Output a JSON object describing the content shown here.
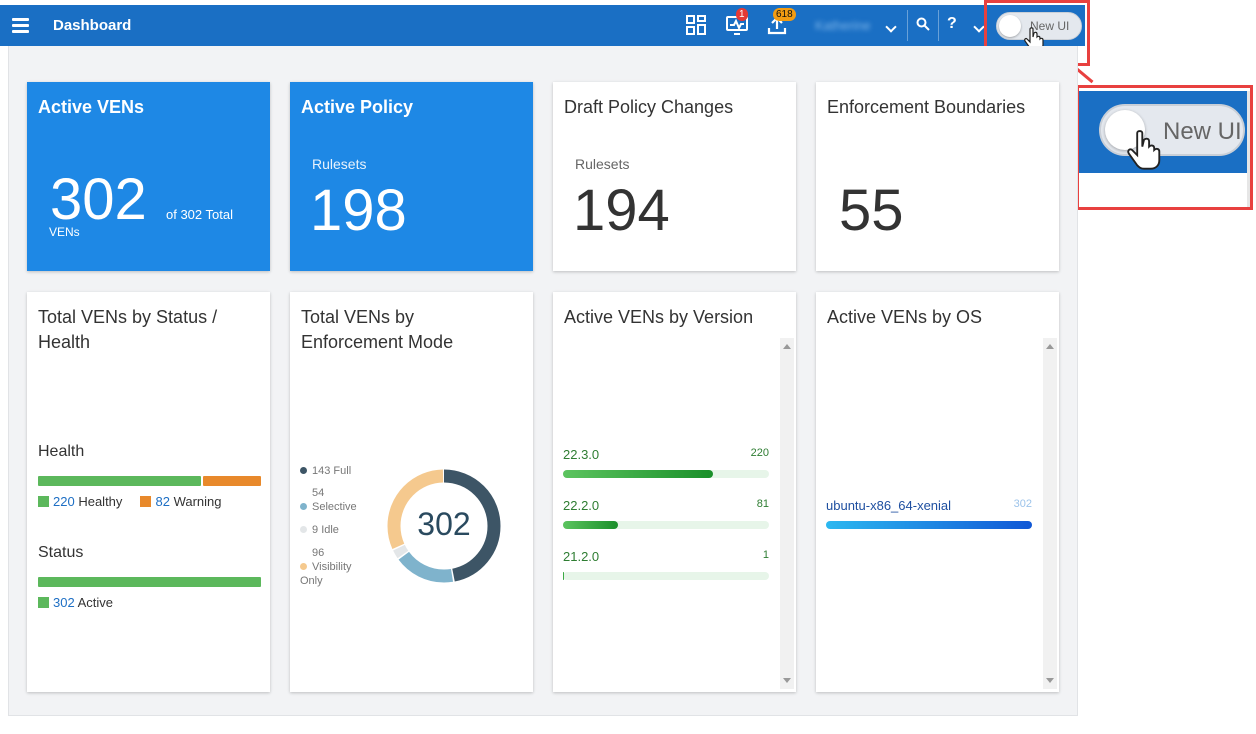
{
  "header": {
    "title": "Dashboard",
    "alerts_badge": "1",
    "uploads_badge": "618",
    "username": "Katherine",
    "help_label": "?",
    "toggle_label": "New UI",
    "brand_color": "#1a6fc4"
  },
  "zoom_callout": {
    "toggle_label": "New UI"
  },
  "cards": {
    "active_vens": {
      "title": "Active VENs",
      "value": "302",
      "suffix": "of 302 Total",
      "unit": "VENs"
    },
    "active_policy": {
      "title": "Active Policy",
      "label": "Rulesets",
      "value": "198"
    },
    "draft_policy": {
      "title": "Draft Policy Changes",
      "label": "Rulesets",
      "value": "194"
    },
    "enforcement_boundaries": {
      "title": "Enforcement Boundaries",
      "value": "55"
    }
  },
  "status_health": {
    "title_line1": "Total VENs by Status /",
    "title_line2": "Health",
    "health_heading": "Health",
    "healthy_count": "220",
    "healthy_label": "Healthy",
    "warning_count": "82",
    "warning_label": "Warning",
    "healthy_fraction": 0.73,
    "status_heading": "Status",
    "active_count": "302",
    "active_label": "Active"
  },
  "enforcement_mode": {
    "title_line1": "Total VENs by",
    "title_line2": "Enforcement Mode",
    "total": "302",
    "legend": [
      {
        "count": "143",
        "label": "Full",
        "color": "#3d5566",
        "value": 143
      },
      {
        "count": "54",
        "label": "Selective",
        "color": "#7fb3cc",
        "value": 54
      },
      {
        "count": "9",
        "label": "Idle",
        "color": "#e3e6e8",
        "value": 9
      },
      {
        "count": "96",
        "label": "Visibility Only",
        "color": "#f5c98e",
        "value": 96
      }
    ]
  },
  "by_version": {
    "title": "Active VENs by Version",
    "rows": [
      {
        "version": "22.3.0",
        "count": "220",
        "value": 220
      },
      {
        "version": "22.2.0",
        "count": "81",
        "value": 81
      },
      {
        "version": "21.2.0",
        "count": "1",
        "value": 1
      }
    ],
    "max": 302
  },
  "by_os": {
    "title": "Active VENs by OS",
    "rows": [
      {
        "os": "ubuntu-x86_64-xenial",
        "count": "302"
      }
    ]
  }
}
